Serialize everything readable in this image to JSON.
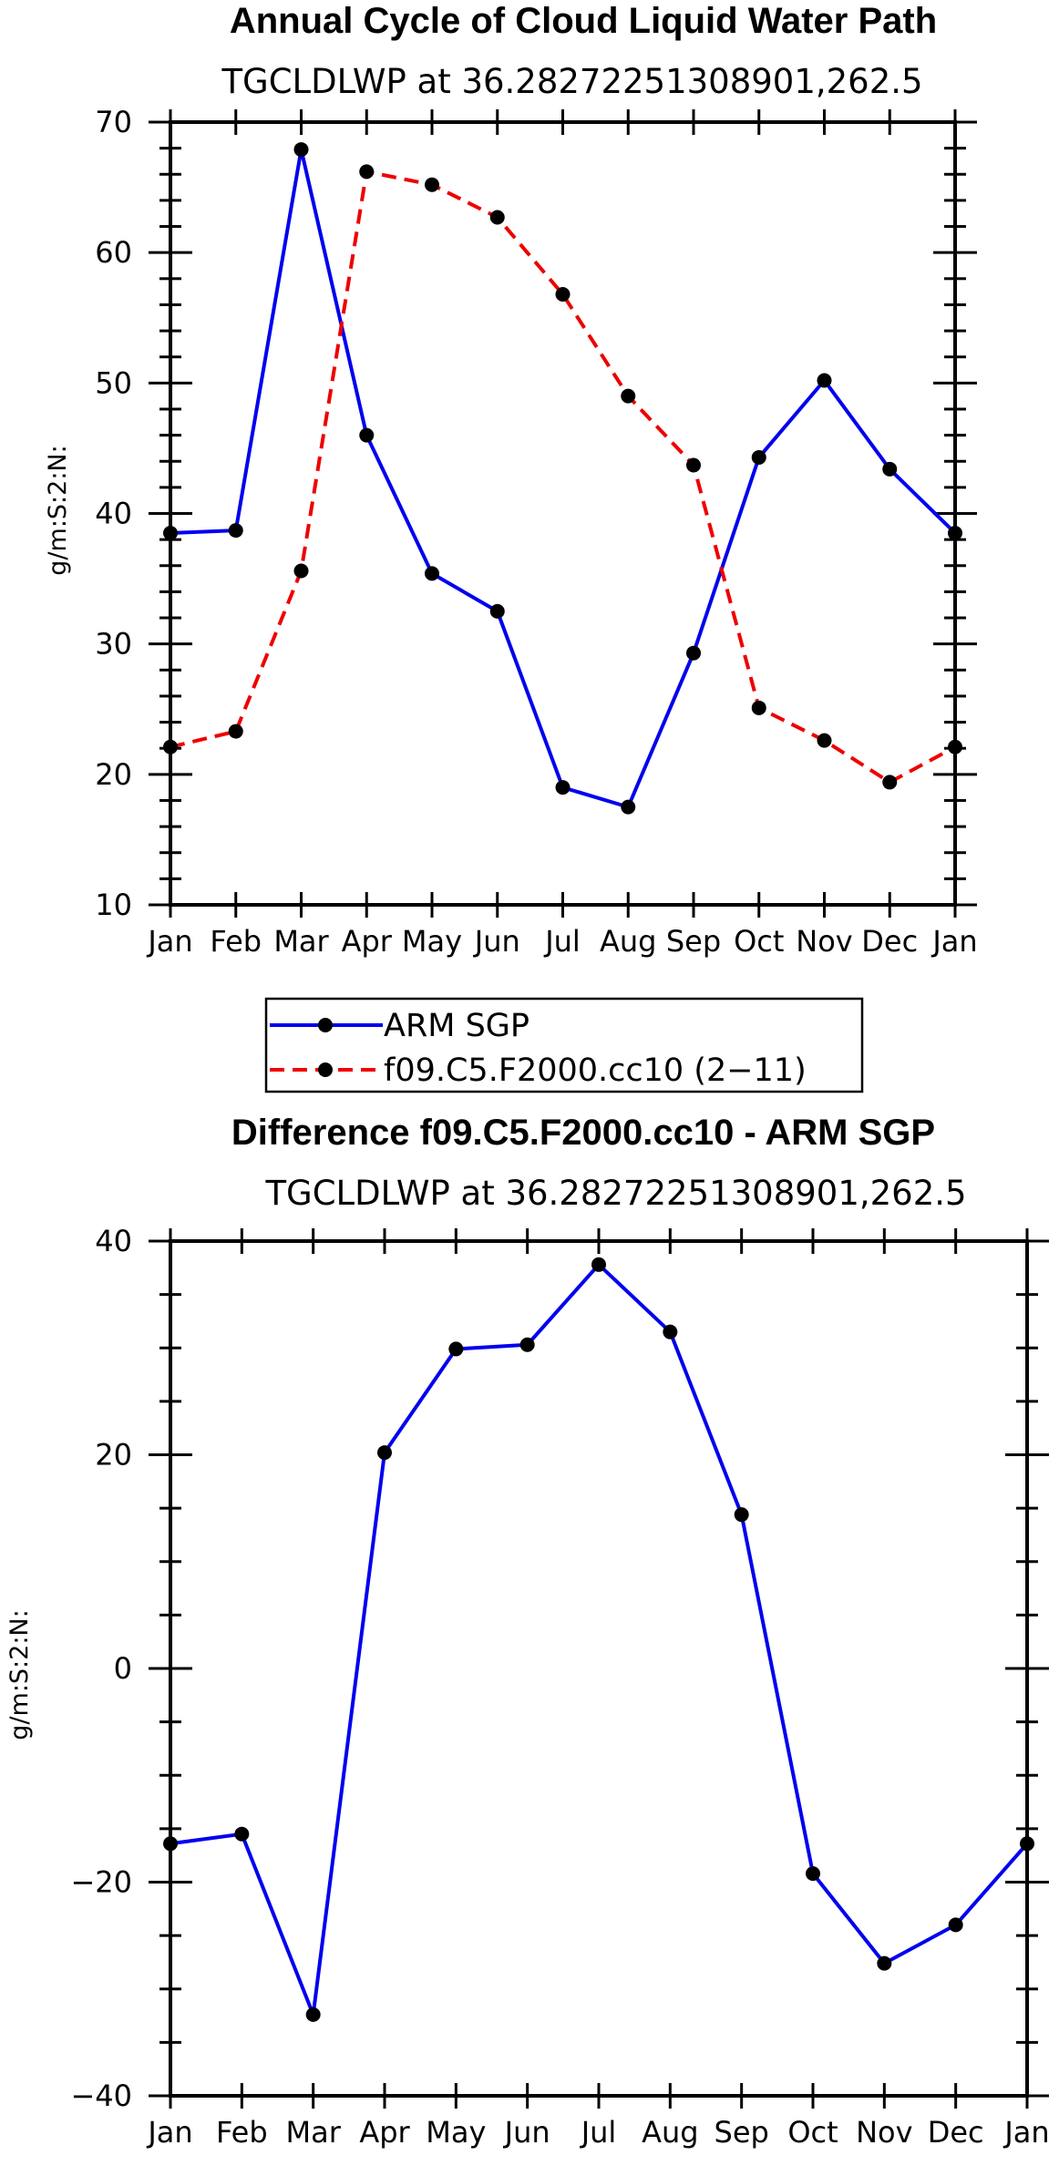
{
  "colors": {
    "arm": "#0000ee",
    "model": "#ee0000",
    "marker": "#000000",
    "axis": "#000000"
  },
  "chart_data": [
    {
      "type": "line",
      "title": "Annual Cycle of Cloud Liquid Water Path",
      "subtitle": "TGCLDLWP at 36.28272251308901,262.5",
      "xlabel": "",
      "ylabel": "g/m:S:2:N:",
      "categories": [
        "Jan",
        "Feb",
        "Mar",
        "Apr",
        "May",
        "Jun",
        "Jul",
        "Aug",
        "Sep",
        "Oct",
        "Nov",
        "Dec",
        "Jan"
      ],
      "ylim": [
        10,
        70
      ],
      "yticks": [
        "70",
        "60",
        "50",
        "40",
        "30",
        "20",
        "10"
      ],
      "series": [
        {
          "name": "ARM SGP",
          "style": "solid",
          "values": [
            38.5,
            38.7,
            67.9,
            46.0,
            35.4,
            32.5,
            19.0,
            17.5,
            29.3,
            44.3,
            50.2,
            43.4,
            38.5
          ]
        },
        {
          "name": "f09.C5.F2000.cc10 (2−11)",
          "style": "dashed",
          "values": [
            22.1,
            23.3,
            35.6,
            66.2,
            65.2,
            62.7,
            56.8,
            49.0,
            43.7,
            25.1,
            22.6,
            19.4,
            22.1
          ]
        }
      ]
    },
    {
      "type": "line",
      "title": "Difference f09.C5.F2000.cc10 - ARM SGP",
      "subtitle": "TGCLDLWP at 36.28272251308901,262.5",
      "xlabel": "",
      "ylabel": "g/m:S:2:N:",
      "categories": [
        "Jan",
        "Feb",
        "Mar",
        "Apr",
        "May",
        "Jun",
        "Jul",
        "Aug",
        "Sep",
        "Oct",
        "Nov",
        "Dec",
        "Jan"
      ],
      "ylim": [
        -40,
        40
      ],
      "yticks": [
        "40",
        "20",
        "0",
        "−20",
        "−40"
      ],
      "series": [
        {
          "name": "Difference",
          "style": "solid",
          "values": [
            -16.4,
            -15.5,
            -32.4,
            20.2,
            29.9,
            30.3,
            37.8,
            31.5,
            14.4,
            -19.2,
            -27.6,
            -24.0,
            -16.4
          ]
        }
      ]
    }
  ]
}
